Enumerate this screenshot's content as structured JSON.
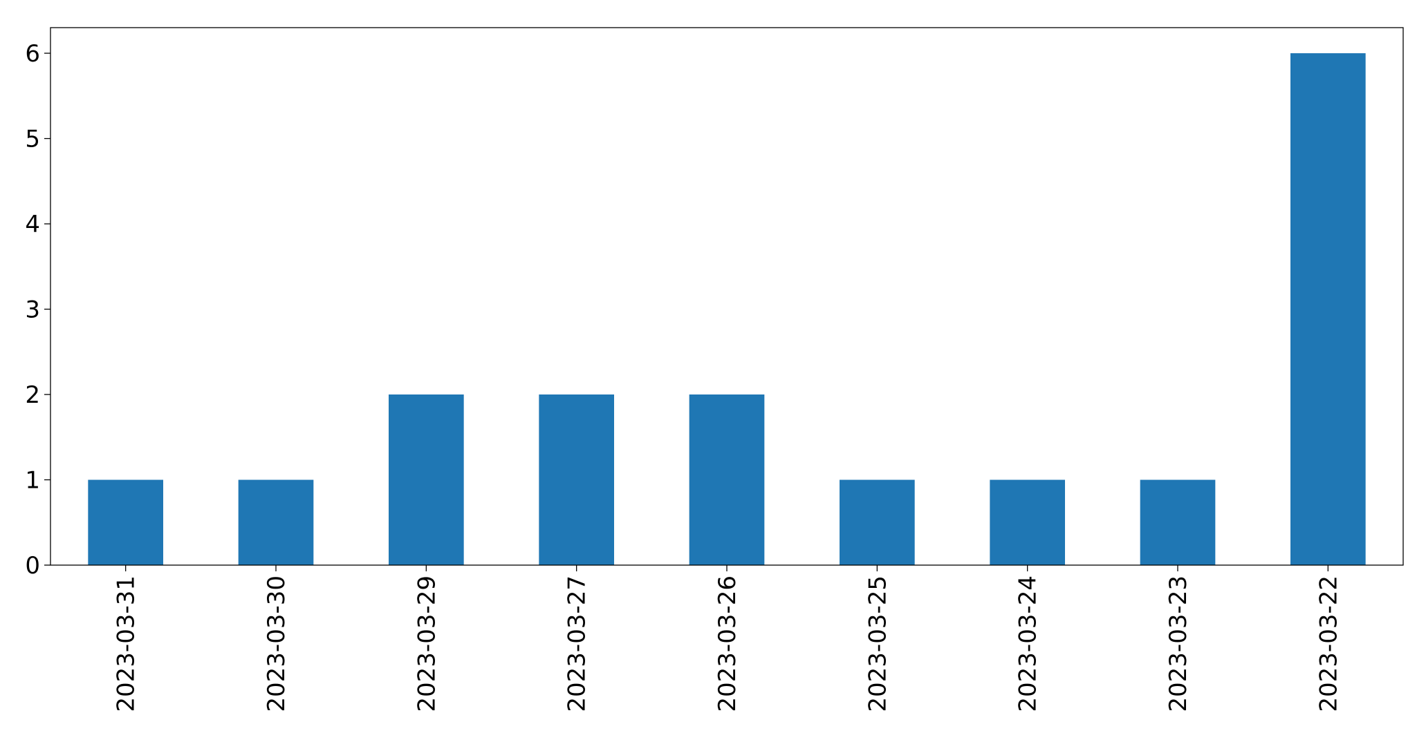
{
  "chart_data": {
    "type": "bar",
    "categories": [
      "2023-03-31",
      "2023-03-30",
      "2023-03-29",
      "2023-03-27",
      "2023-03-26",
      "2023-03-25",
      "2023-03-24",
      "2023-03-23",
      "2023-03-22"
    ],
    "values": [
      1,
      1,
      2,
      2,
      2,
      1,
      1,
      1,
      6
    ],
    "color": "#1f77b4",
    "ylim": [
      0,
      6.3
    ],
    "yticks": [
      0,
      1,
      2,
      3,
      4,
      5,
      6
    ],
    "grid": false
  }
}
